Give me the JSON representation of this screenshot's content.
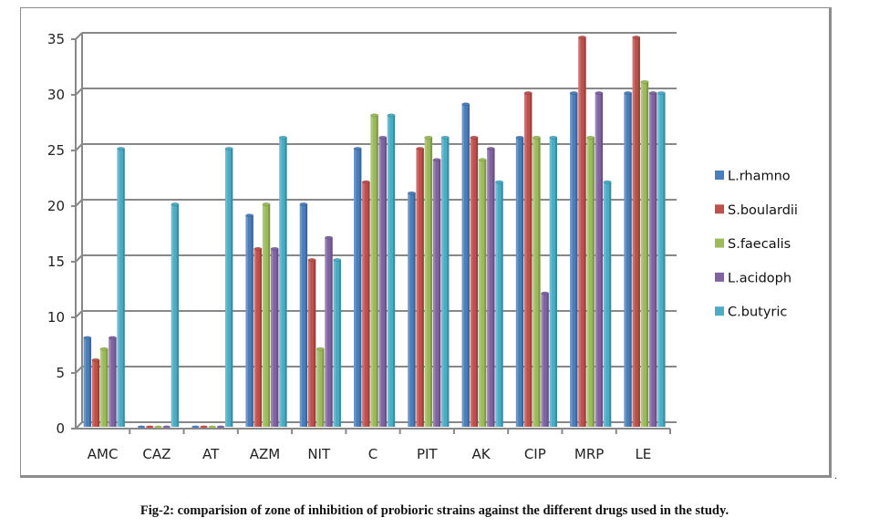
{
  "chart_data": {
    "type": "bar",
    "title": "",
    "xlabel": "",
    "ylabel": "",
    "ylim": [
      0,
      35
    ],
    "yticks": [
      0,
      5,
      10,
      15,
      20,
      25,
      30,
      35
    ],
    "grid": true,
    "legend_position": "right",
    "categories": [
      "AMC",
      "CAZ",
      "AT",
      "AZM",
      "NIT",
      "C",
      "PIT",
      "AK",
      "CIP",
      "MRP",
      "LE"
    ],
    "series": [
      {
        "name": "L.rhamno",
        "color": "#4a7ebb",
        "values": [
          8,
          0,
          0,
          19,
          20,
          25,
          21,
          29,
          26,
          30,
          30
        ]
      },
      {
        "name": "S.boulardii",
        "color": "#c0504d",
        "values": [
          6,
          0,
          0,
          16,
          15,
          22,
          25,
          26,
          30,
          35,
          35
        ]
      },
      {
        "name": "S.faecalis",
        "color": "#9bbb59",
        "values": [
          7,
          0,
          0,
          20,
          7,
          28,
          26,
          24,
          26,
          26,
          31
        ]
      },
      {
        "name": "L.acidoph",
        "color": "#8064a2",
        "values": [
          8,
          0,
          0,
          16,
          17,
          26,
          24,
          25,
          12,
          30,
          30
        ]
      },
      {
        "name": "C.butyric",
        "color": "#4bacc6",
        "values": [
          25,
          20,
          25,
          26,
          15,
          28,
          26,
          22,
          26,
          22,
          30
        ]
      }
    ]
  },
  "caption": "Fig-2: comparision of zone of inhibition of probioric strains against the different drugs used in the study.",
  "trailing_mark": "."
}
